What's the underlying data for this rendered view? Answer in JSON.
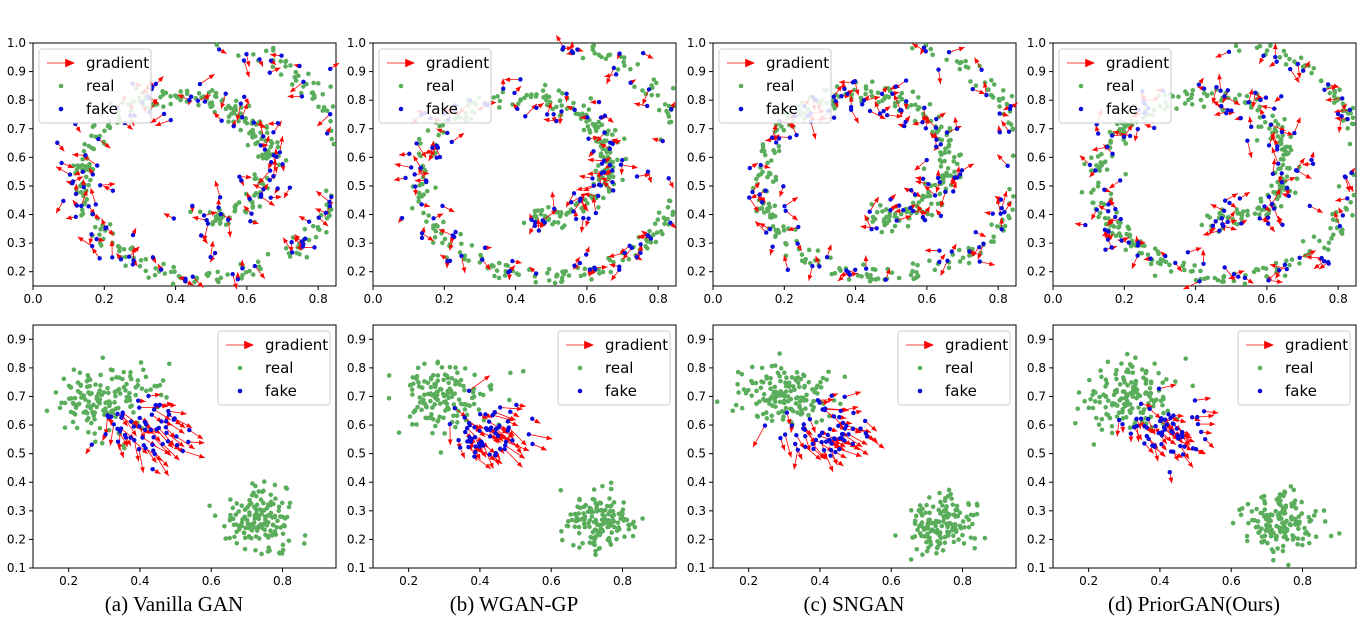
{
  "colors": {
    "real": "#5aad5a",
    "fake": "#0b0bdc",
    "gradient": "#ff0000",
    "axis": "#000000",
    "legend_border": "#cccccc"
  },
  "legend": {
    "gradient": "gradient",
    "real": "real",
    "fake": "fake"
  },
  "captions": [
    "(a) Vanilla GAN",
    "(b) WGAN-GP",
    "(c) SNGAN",
    "(d) PriorGAN(Ours)"
  ],
  "chart_data": [
    {
      "type": "scatter",
      "subplot": "(a) top",
      "dataset": "swiss-roll",
      "xlim": [
        0.0,
        0.85
      ],
      "ylim": [
        0.15,
        1.0
      ],
      "xticks": [
        "0.0",
        "0.2",
        "0.4",
        "0.6",
        "0.8"
      ],
      "yticks": [
        "0.2",
        "0.3",
        "0.4",
        "0.5",
        "0.6",
        "0.7",
        "0.8",
        "0.9",
        "1.0"
      ],
      "legend_position": "top-left",
      "series": [
        {
          "name": "real",
          "marker": "dot"
        },
        {
          "name": "fake",
          "marker": "dot"
        },
        {
          "name": "gradient",
          "marker": "arrow",
          "note": "arrows from fake points, often pointing away from the data"
        }
      ]
    },
    {
      "type": "scatter",
      "subplot": "(b) top",
      "dataset": "swiss-roll",
      "xlim": [
        0.0,
        0.85
      ],
      "ylim": [
        0.15,
        1.0
      ],
      "xticks": [
        "0.0",
        "0.2",
        "0.4",
        "0.6",
        "0.8"
      ],
      "yticks": [
        "0.2",
        "0.3",
        "0.4",
        "0.5",
        "0.6",
        "0.7",
        "0.8",
        "0.9",
        "1.0"
      ],
      "legend_position": "top-left",
      "series": [
        {
          "name": "real"
        },
        {
          "name": "fake"
        },
        {
          "name": "gradient"
        }
      ]
    },
    {
      "type": "scatter",
      "subplot": "(c) top",
      "dataset": "swiss-roll",
      "xlim": [
        0.0,
        0.85
      ],
      "ylim": [
        0.15,
        1.0
      ],
      "xticks": [
        "0.0",
        "0.2",
        "0.4",
        "0.6",
        "0.8"
      ],
      "yticks": [
        "0.2",
        "0.3",
        "0.4",
        "0.5",
        "0.6",
        "0.7",
        "0.8",
        "0.9",
        "1.0"
      ],
      "legend_position": "top-left",
      "series": [
        {
          "name": "real"
        },
        {
          "name": "fake"
        },
        {
          "name": "gradient"
        }
      ]
    },
    {
      "type": "scatter",
      "subplot": "(d) top",
      "dataset": "swiss-roll",
      "xlim": [
        0.0,
        0.85
      ],
      "ylim": [
        0.15,
        1.0
      ],
      "xticks": [
        "0.0",
        "0.2",
        "0.4",
        "0.6",
        "0.8"
      ],
      "yticks": [
        "0.2",
        "0.3",
        "0.4",
        "0.5",
        "0.6",
        "0.7",
        "0.8",
        "0.9",
        "1.0"
      ],
      "legend_position": "top-left",
      "series": [
        {
          "name": "real"
        },
        {
          "name": "fake"
        },
        {
          "name": "gradient"
        }
      ]
    },
    {
      "type": "scatter",
      "subplot": "(a) bottom",
      "dataset": "two-clusters",
      "xlim": [
        0.1,
        0.95
      ],
      "ylim": [
        0.1,
        0.95
      ],
      "xticks": [
        "0.2",
        "0.4",
        "0.6",
        "0.8"
      ],
      "yticks": [
        "0.1",
        "0.2",
        "0.3",
        "0.4",
        "0.5",
        "0.6",
        "0.7",
        "0.8",
        "0.9"
      ],
      "legend_position": "top-right",
      "real_clusters": [
        {
          "center": [
            0.3,
            0.7
          ],
          "spread": [
            0.07,
            0.06
          ]
        },
        {
          "center": [
            0.74,
            0.26
          ],
          "spread": [
            0.05,
            0.05
          ]
        }
      ],
      "fake_cluster": {
        "center": [
          0.41,
          0.58
        ],
        "spread": [
          0.06,
          0.05
        ]
      },
      "series": [
        {
          "name": "real"
        },
        {
          "name": "fake"
        },
        {
          "name": "gradient"
        }
      ]
    },
    {
      "type": "scatter",
      "subplot": "(b) bottom",
      "dataset": "two-clusters",
      "xlim": [
        0.1,
        0.95
      ],
      "ylim": [
        0.1,
        0.95
      ],
      "xticks": [
        "0.2",
        "0.4",
        "0.6",
        "0.8"
      ],
      "yticks": [
        "0.1",
        "0.2",
        "0.3",
        "0.4",
        "0.5",
        "0.6",
        "0.7",
        "0.8",
        "0.9"
      ],
      "legend_position": "top-right",
      "real_clusters": [
        {
          "center": [
            0.3,
            0.7
          ],
          "spread": [
            0.07,
            0.06
          ]
        },
        {
          "center": [
            0.74,
            0.26
          ],
          "spread": [
            0.05,
            0.05
          ]
        }
      ],
      "fake_cluster": {
        "center": [
          0.41,
          0.58
        ],
        "spread": [
          0.06,
          0.05
        ]
      },
      "series": [
        {
          "name": "real"
        },
        {
          "name": "fake"
        },
        {
          "name": "gradient"
        }
      ]
    },
    {
      "type": "scatter",
      "subplot": "(c) bottom",
      "dataset": "two-clusters",
      "xlim": [
        0.1,
        0.95
      ],
      "ylim": [
        0.1,
        0.95
      ],
      "xticks": [
        "0.2",
        "0.4",
        "0.6",
        "0.8"
      ],
      "yticks": [
        "0.1",
        "0.2",
        "0.3",
        "0.4",
        "0.5",
        "0.6",
        "0.7",
        "0.8",
        "0.9"
      ],
      "legend_position": "top-right",
      "real_clusters": [
        {
          "center": [
            0.3,
            0.7
          ],
          "spread": [
            0.07,
            0.06
          ]
        },
        {
          "center": [
            0.74,
            0.26
          ],
          "spread": [
            0.05,
            0.05
          ]
        }
      ],
      "fake_cluster": {
        "center": [
          0.41,
          0.58
        ],
        "spread": [
          0.06,
          0.05
        ]
      },
      "series": [
        {
          "name": "real"
        },
        {
          "name": "fake"
        },
        {
          "name": "gradient"
        }
      ]
    },
    {
      "type": "scatter",
      "subplot": "(d) bottom",
      "dataset": "two-clusters",
      "xlim": [
        0.1,
        0.95
      ],
      "ylim": [
        0.1,
        0.95
      ],
      "xticks": [
        "0.2",
        "0.4",
        "0.6",
        "0.8"
      ],
      "yticks": [
        "0.1",
        "0.2",
        "0.3",
        "0.4",
        "0.5",
        "0.6",
        "0.7",
        "0.8",
        "0.9"
      ],
      "legend_position": "top-right",
      "real_clusters": [
        {
          "center": [
            0.3,
            0.7
          ],
          "spread": [
            0.07,
            0.06
          ]
        },
        {
          "center": [
            0.74,
            0.26
          ],
          "spread": [
            0.05,
            0.05
          ]
        }
      ],
      "fake_cluster": {
        "center": [
          0.42,
          0.57
        ],
        "spread": [
          0.06,
          0.05
        ]
      },
      "series": [
        {
          "name": "real"
        },
        {
          "name": "fake"
        },
        {
          "name": "gradient"
        }
      ]
    }
  ]
}
